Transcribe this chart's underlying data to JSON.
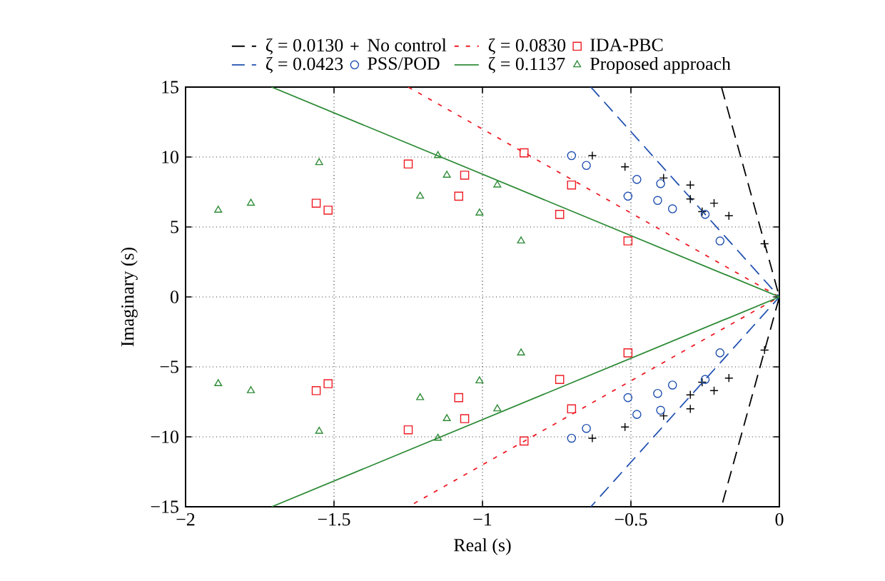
{
  "chart_data": {
    "type": "scatter",
    "xlabel": "Real (s)",
    "ylabel": "Imaginary (s)",
    "xlim": [
      -2,
      0
    ],
    "ylim": [
      -15,
      15
    ],
    "xticks": [
      {
        "value": -2,
        "label": "−2"
      },
      {
        "value": -1.5,
        "label": "−1.5"
      },
      {
        "value": -1,
        "label": "−1"
      },
      {
        "value": -0.5,
        "label": "−0.5"
      },
      {
        "value": 0,
        "label": "0"
      }
    ],
    "yticks": [
      {
        "value": -15,
        "label": "−15"
      },
      {
        "value": -10,
        "label": "−10"
      },
      {
        "value": -5,
        "label": "−5"
      },
      {
        "value": 0,
        "label": "0"
      },
      {
        "value": 5,
        "label": "5"
      },
      {
        "value": 10,
        "label": "10"
      },
      {
        "value": 15,
        "label": "15"
      }
    ],
    "grid": true,
    "legend": "top",
    "series": [
      {
        "name": "ζ = 0.0130",
        "type": "line",
        "line_style": "dashed",
        "marker": "none",
        "color": "#000000",
        "x": [
          -0.195,
          0,
          -0.195
        ],
        "values": [
          15,
          0,
          -15
        ]
      },
      {
        "name": "No control",
        "marker": "cross",
        "color": "#000000",
        "x": [
          -0.63,
          -0.52,
          -0.39,
          -0.3,
          -0.3,
          -0.22,
          -0.26,
          -0.17,
          -0.05,
          -0.63,
          -0.52,
          -0.39,
          -0.3,
          -0.3,
          -0.22,
          -0.26,
          -0.17,
          -0.05
        ],
        "values": [
          10.1,
          9.3,
          8.5,
          8.0,
          7.0,
          6.7,
          6.1,
          5.8,
          3.8,
          -10.1,
          -9.3,
          -8.5,
          -8.0,
          -7.0,
          -6.7,
          -6.1,
          -5.8,
          -3.8
        ]
      },
      {
        "name": "ζ = 0.0830",
        "type": "line",
        "line_style": "dotted",
        "marker": "none",
        "color": "#ee1c25",
        "x": [
          -1.25,
          0,
          -1.25
        ],
        "values": [
          15,
          0,
          -15
        ]
      },
      {
        "name": "IDA-PBC",
        "marker": "square",
        "color": "#ee1c25",
        "x": [
          -1.56,
          -1.52,
          -1.25,
          -1.08,
          -1.06,
          -0.86,
          -0.7,
          -0.74,
          -0.51,
          -1.56,
          -1.52,
          -1.25,
          -1.08,
          -1.06,
          -0.86,
          -0.7,
          -0.74,
          -0.51
        ],
        "values": [
          6.7,
          6.2,
          9.5,
          7.2,
          8.7,
          10.3,
          8.0,
          5.9,
          4.0,
          -6.7,
          -6.2,
          -9.5,
          -7.2,
          -8.7,
          -10.3,
          -8.0,
          -5.9,
          -4.0
        ]
      },
      {
        "name": "ζ = 0.0423",
        "type": "line",
        "line_style": "dashed",
        "marker": "none",
        "color": "#2050b0",
        "x": [
          -0.635,
          0,
          -0.635
        ],
        "values": [
          15,
          0,
          -15
        ]
      },
      {
        "name": "PSS/POD",
        "marker": "circle",
        "color": "#2050b0",
        "x": [
          -0.7,
          -0.65,
          -0.48,
          -0.4,
          -0.51,
          -0.41,
          -0.36,
          -0.25,
          -0.2,
          -0.7,
          -0.65,
          -0.48,
          -0.4,
          -0.51,
          -0.41,
          -0.36,
          -0.25,
          -0.2
        ],
        "values": [
          10.1,
          9.4,
          8.4,
          8.1,
          7.2,
          6.9,
          6.3,
          5.9,
          4.0,
          -10.1,
          -9.4,
          -8.4,
          -8.1,
          -7.2,
          -6.9,
          -6.3,
          -5.9,
          -4.0
        ]
      },
      {
        "name": "ζ = 0.1137",
        "type": "line",
        "line_style": "solid",
        "marker": "none",
        "color": "#2e8b37",
        "x": [
          -1.71,
          0,
          -1.71
        ],
        "values": [
          15,
          0,
          -15
        ]
      },
      {
        "name": "Proposed approach",
        "marker": "triangle",
        "color": "#2e8b37",
        "x": [
          -1.89,
          -1.78,
          -1.55,
          -1.21,
          -1.15,
          -1.12,
          -1.01,
          -0.95,
          -0.87,
          -1.89,
          -1.78,
          -1.55,
          -1.21,
          -1.15,
          -1.12,
          -1.01,
          -0.95,
          -0.87
        ],
        "values": [
          6.2,
          6.7,
          9.6,
          7.2,
          10.1,
          8.7,
          6.0,
          8.0,
          4.0,
          -6.2,
          -6.7,
          -9.6,
          -7.2,
          -10.1,
          -8.7,
          -6.0,
          -8.0,
          -4.0
        ]
      }
    ]
  }
}
